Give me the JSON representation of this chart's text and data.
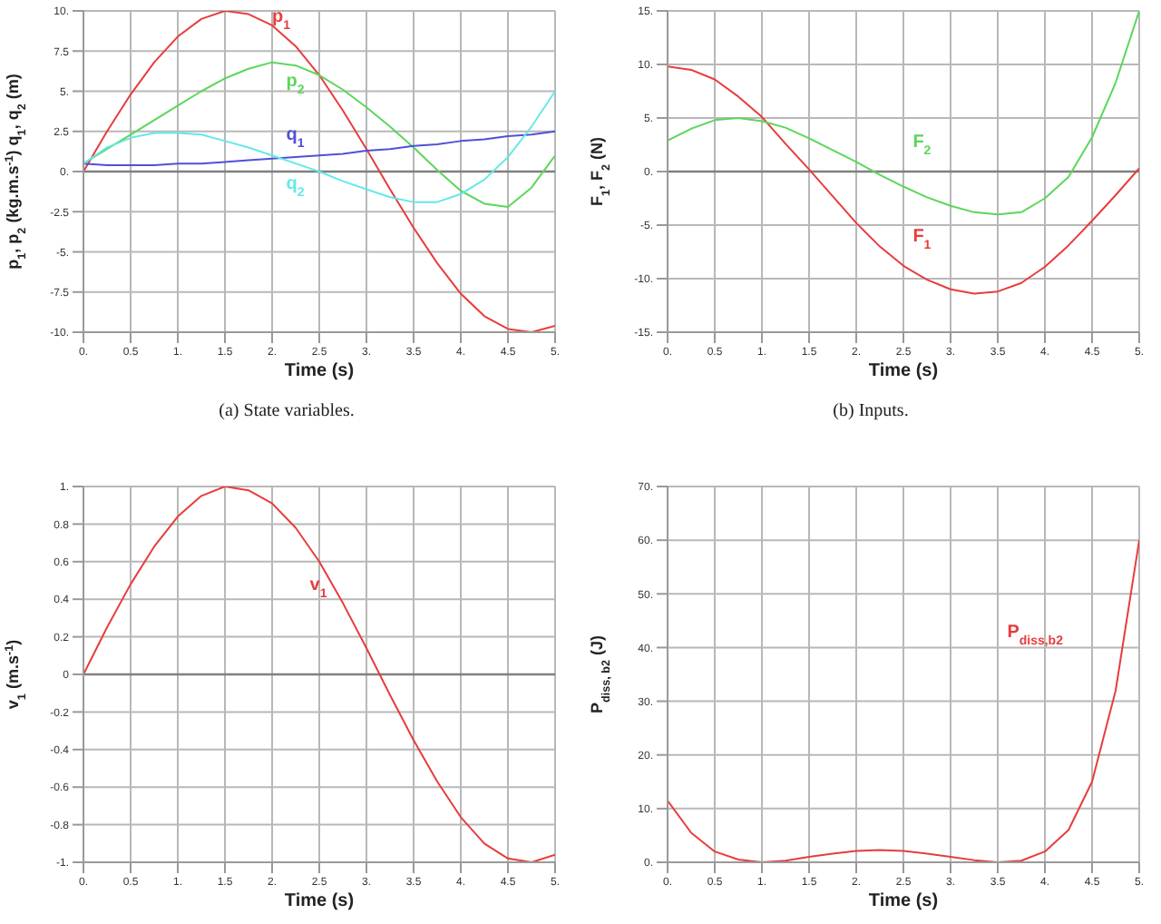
{
  "chart_data": [
    {
      "type": "line",
      "xlabel": "Time (s)",
      "ylabel": "p$_{1}$, p$_{2}$ (kg.m.s$^{-1}$)    q$_{1}$, q$_{2}$ (m)",
      "annotations": [
        "(a)  State variables."
      ],
      "x": [
        0,
        0.25,
        0.5,
        0.75,
        1,
        1.25,
        1.5,
        1.75,
        2,
        2.25,
        2.5,
        2.75,
        3,
        3.25,
        3.5,
        3.75,
        4,
        4.25,
        4.5,
        4.75,
        5
      ],
      "series": [
        {
          "name": "p$_{1}$",
          "color": "#e83c3c",
          "values": [
            0,
            2.5,
            4.8,
            6.8,
            8.4,
            9.5,
            10,
            9.8,
            9.1,
            7.8,
            6,
            3.8,
            1.4,
            -1.1,
            -3.5,
            -5.7,
            -7.6,
            -9,
            -9.8,
            -10,
            -9.6
          ]
        },
        {
          "name": "p$_{2}$",
          "color": "#5cd65c",
          "values": [
            0.5,
            1.4,
            2.3,
            3.2,
            4.1,
            5,
            5.8,
            6.4,
            6.8,
            6.6,
            6,
            5.1,
            4,
            2.8,
            1.5,
            0.1,
            -1.2,
            -2,
            -2.2,
            -1,
            1
          ]
        },
        {
          "name": "q$_{1}$",
          "color": "#5050d8",
          "values": [
            0.5,
            0.4,
            0.4,
            0.4,
            0.5,
            0.5,
            0.6,
            0.7,
            0.8,
            0.9,
            1,
            1.1,
            1.3,
            1.4,
            1.6,
            1.7,
            1.9,
            2,
            2.2,
            2.3,
            2.5
          ]
        },
        {
          "name": "q$_{2}$",
          "color": "#66e8e8",
          "values": [
            0.5,
            1.5,
            2.1,
            2.4,
            2.4,
            2.3,
            1.9,
            1.5,
            1,
            0.5,
            0,
            -0.6,
            -1.1,
            -1.6,
            -1.9,
            -1.9,
            -1.4,
            -0.5,
            0.9,
            2.8,
            5
          ]
        }
      ],
      "xlim": [
        0,
        5
      ],
      "xticks": [
        {
          "value": 0,
          "label": "0."
        },
        0.5,
        {
          "value": 1,
          "label": "1."
        },
        1.5,
        {
          "value": 2,
          "label": "2."
        },
        2.5,
        {
          "value": 3,
          "label": "3."
        },
        3.5,
        {
          "value": 4,
          "label": "4."
        },
        4.5,
        {
          "value": 5,
          "label": "5."
        }
      ],
      "ylim": [
        -10,
        10
      ],
      "yticks": [
        {
          "value": -10,
          "label": "-10."
        },
        -7.5,
        {
          "value": -5,
          "label": "-5."
        },
        -2.5,
        {
          "value": 0,
          "label": "0."
        },
        2.5,
        {
          "value": 5,
          "label": "5."
        },
        7.5,
        {
          "value": 10,
          "label": "10."
        }
      ],
      "ref_lines": [
        {
          "axis": "y",
          "value": 0,
          "color": "#808080"
        }
      ],
      "grid": true,
      "legend": false,
      "marker": "none",
      "line_style": "solid"
    },
    {
      "type": "line",
      "xlabel": "Time (s)",
      "ylabel": "F$_{1}$, F$_{2}$ (N)",
      "annotations": [
        "(b)  Inputs."
      ],
      "x": [
        0,
        0.25,
        0.5,
        0.75,
        1,
        1.25,
        1.5,
        1.75,
        2,
        2.25,
        2.5,
        2.75,
        3,
        3.25,
        3.5,
        3.75,
        4,
        4.25,
        4.5,
        4.75,
        5
      ],
      "series": [
        {
          "name": "F$_{1}$",
          "color": "#e83c3c",
          "x": [
            0,
            0,
            0.25,
            0.5,
            0.75,
            1,
            1.25,
            1.5,
            1.75,
            2,
            2.25,
            2.5,
            2.75,
            3,
            3.25,
            3.5,
            3.75,
            4,
            4.25,
            4.5,
            4.75,
            5
          ],
          "values": [
            0,
            9.8,
            9.5,
            8.6,
            7,
            5.1,
            2.6,
            0.2,
            -2.3,
            -4.8,
            -7,
            -8.8,
            -10.1,
            -11,
            -11.4,
            -11.2,
            -10.4,
            -8.9,
            -6.9,
            -4.6,
            -2.2,
            0.3
          ]
        },
        {
          "name": "F$_{2}$",
          "color": "#5cd65c",
          "values": [
            2.9,
            4,
            4.8,
            5,
            4.7,
            4.1,
            3.1,
            2,
            0.9,
            -0.3,
            -1.4,
            -2.4,
            -3.2,
            -3.8,
            -4,
            -3.8,
            -2.5,
            -0.5,
            3.2,
            8.3,
            15
          ]
        }
      ],
      "xlim": [
        0,
        5
      ],
      "xticks": [
        {
          "value": 0,
          "label": "0."
        },
        0.5,
        {
          "value": 1,
          "label": "1."
        },
        1.5,
        {
          "value": 2,
          "label": "2."
        },
        2.5,
        {
          "value": 3,
          "label": "3."
        },
        3.5,
        {
          "value": 4,
          "label": "4."
        },
        4.5,
        {
          "value": 5,
          "label": "5."
        }
      ],
      "ylim": [
        -15,
        15
      ],
      "yticks": [
        {
          "value": -15,
          "label": "-15."
        },
        {
          "value": -10,
          "label": "-10."
        },
        {
          "value": -5,
          "label": "-5."
        },
        {
          "value": 0,
          "label": "0."
        },
        {
          "value": 5,
          "label": "5."
        },
        {
          "value": 10,
          "label": "10."
        },
        {
          "value": 15,
          "label": "15."
        }
      ],
      "ref_lines": [
        {
          "axis": "y",
          "value": 0,
          "color": "#808080"
        }
      ],
      "grid": true,
      "legend": false,
      "marker": "none",
      "line_style": "solid"
    },
    {
      "type": "line",
      "xlabel": "Time (s)",
      "ylabel": "v$_{1}$ (m.s$^{-1}$)",
      "x": [
        0,
        0.25,
        0.5,
        0.75,
        1,
        1.25,
        1.5,
        1.75,
        2,
        2.25,
        2.5,
        2.75,
        3,
        3.25,
        3.5,
        3.75,
        4,
        4.25,
        4.5,
        4.75,
        5
      ],
      "series": [
        {
          "name": "v$_{1}$",
          "color": "#e83c3c",
          "values": [
            0,
            0.25,
            0.48,
            0.68,
            0.84,
            0.95,
            1,
            0.98,
            0.91,
            0.78,
            0.6,
            0.38,
            0.14,
            -0.11,
            -0.35,
            -0.57,
            -0.76,
            -0.9,
            -0.98,
            -1,
            -0.96
          ]
        }
      ],
      "xlim": [
        0,
        5
      ],
      "xticks": [
        {
          "value": 0,
          "label": "0."
        },
        0.5,
        {
          "value": 1,
          "label": "1."
        },
        1.5,
        {
          "value": 2,
          "label": "2."
        },
        2.5,
        {
          "value": 3,
          "label": "3."
        },
        3.5,
        {
          "value": 4,
          "label": "4."
        },
        4.5,
        {
          "value": 5,
          "label": "5."
        }
      ],
      "ylim": [
        -1,
        1
      ],
      "yticks": [
        {
          "value": -1,
          "label": "-1."
        },
        -0.8,
        -0.6,
        -0.4,
        -0.2,
        0,
        0.2,
        0.4,
        0.6,
        0.8,
        {
          "value": 1,
          "label": "1."
        }
      ],
      "ref_lines": [
        {
          "axis": "y",
          "value": 0,
          "color": "#808080"
        }
      ],
      "grid": true,
      "legend": false,
      "marker": "none",
      "line_style": "solid"
    },
    {
      "type": "line",
      "xlabel": "Time (s)",
      "ylabel": "P$_{diss, b2}$ (J)",
      "x": [
        0,
        0.25,
        0.5,
        0.75,
        1,
        1.25,
        1.5,
        1.75,
        2,
        2.25,
        2.5,
        2.75,
        3,
        3.25,
        3.5,
        3.75,
        4,
        4.25,
        4.5,
        4.75,
        5
      ],
      "series": [
        {
          "name": "P$_{diss,b2}$",
          "color": "#e83c3c",
          "values": [
            11.5,
            5.5,
            2,
            0.5,
            0,
            0.3,
            1,
            1.6,
            2.1,
            2.3,
            2.1,
            1.6,
            1,
            0.4,
            0,
            0.3,
            2,
            6,
            15,
            32,
            60
          ]
        }
      ],
      "xlim": [
        0,
        5
      ],
      "xticks": [
        {
          "value": 0,
          "label": "0."
        },
        0.5,
        {
          "value": 1,
          "label": "1."
        },
        1.5,
        {
          "value": 2,
          "label": "2."
        },
        2.5,
        {
          "value": 3,
          "label": "3."
        },
        3.5,
        {
          "value": 4,
          "label": "4."
        },
        4.5,
        {
          "value": 5,
          "label": "5."
        }
      ],
      "ylim": [
        0,
        70
      ],
      "yticks": [
        {
          "value": 0,
          "label": "0."
        },
        {
          "value": 10,
          "label": "10."
        },
        {
          "value": 20,
          "label": "20."
        },
        {
          "value": 30,
          "label": "30."
        },
        {
          "value": 40,
          "label": "40."
        },
        {
          "value": 50,
          "label": "50."
        },
        {
          "value": 60,
          "label": "60."
        },
        {
          "value": 70,
          "label": "70."
        }
      ],
      "grid": true,
      "legend": false,
      "marker": "none",
      "line_style": "solid"
    }
  ]
}
